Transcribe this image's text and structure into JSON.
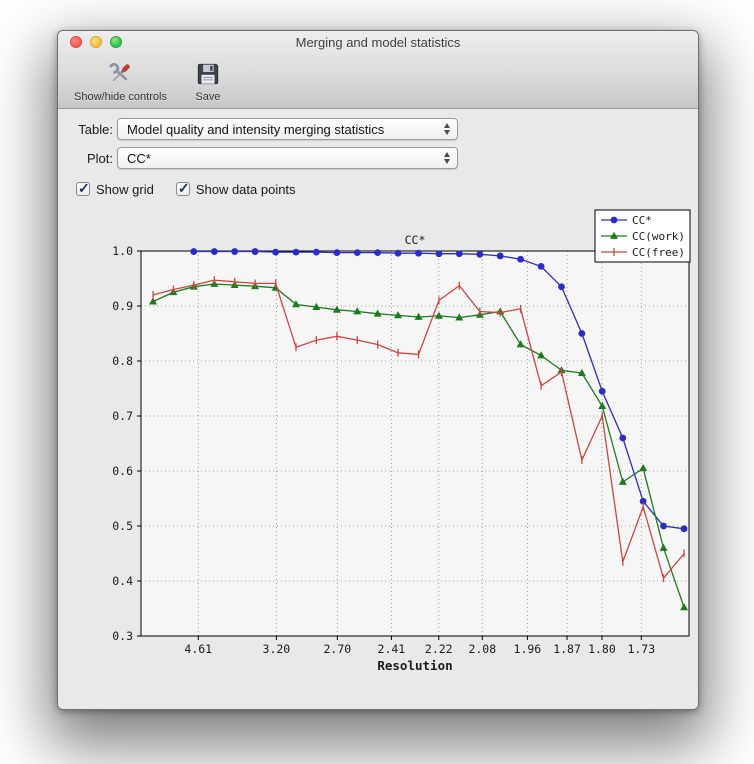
{
  "window": {
    "title": "Merging and model statistics"
  },
  "toolbar": {
    "buttons": [
      {
        "label": "Show/hide controls",
        "icon": "tools-icon"
      },
      {
        "label": "Save",
        "icon": "floppy-disk-icon"
      }
    ]
  },
  "controls": {
    "table_label": "Table:",
    "table_value": "Model quality and intensity merging statistics",
    "plot_label": "Plot:",
    "plot_value": "CC*",
    "checkboxes": [
      {
        "label": "Show grid",
        "checked": true
      },
      {
        "label": "Show data points",
        "checked": true
      }
    ]
  },
  "chart_data": {
    "type": "line",
    "title": "CC*",
    "xlabel": "Resolution",
    "grid": true,
    "legend_position": "top-right",
    "xlim": [
      0.01,
      0.365
    ],
    "ylim": [
      0.3,
      1.0
    ],
    "yticks": [
      {
        "label": "0.3",
        "value": 0.3
      },
      {
        "label": "0.4",
        "value": 0.4
      },
      {
        "label": "0.5",
        "value": 0.5
      },
      {
        "label": "0.6",
        "value": 0.6
      },
      {
        "label": "0.7",
        "value": 0.7
      },
      {
        "label": "0.8",
        "value": 0.8
      },
      {
        "label": "0.9",
        "value": 0.9
      },
      {
        "label": "1.0",
        "value": 1.0
      }
    ],
    "xticks": [
      {
        "label": "4.61",
        "value": 0.0471
      },
      {
        "label": "3.20",
        "value": 0.0977
      },
      {
        "label": "2.70",
        "value": 0.1372
      },
      {
        "label": "2.41",
        "value": 0.1722
      },
      {
        "label": "2.22",
        "value": 0.2029
      },
      {
        "label": "2.08",
        "value": 0.2311
      },
      {
        "label": "1.96",
        "value": 0.2603
      },
      {
        "label": "1.87",
        "value": 0.286
      },
      {
        "label": "1.80",
        "value": 0.3086
      },
      {
        "label": "1.73",
        "value": 0.3341
      }
    ],
    "x": [
      0.0178,
      0.031,
      0.0442,
      0.0575,
      0.0707,
      0.0839,
      0.0972,
      0.1104,
      0.1236,
      0.1369,
      0.1501,
      0.1633,
      0.1765,
      0.1898,
      0.203,
      0.2162,
      0.2295,
      0.2427,
      0.2559,
      0.2692,
      0.2824,
      0.2956,
      0.3088,
      0.3221,
      0.3353,
      0.3485,
      0.3618
    ],
    "series": [
      {
        "name": "CC*",
        "color": "#2b2bc8",
        "marker": "circle",
        "values": [
          null,
          null,
          0.999,
          0.999,
          0.999,
          0.999,
          0.998,
          0.998,
          0.998,
          0.997,
          0.997,
          0.997,
          0.996,
          0.996,
          0.995,
          0.995,
          0.994,
          0.991,
          0.985,
          0.972,
          0.935,
          0.85,
          0.745,
          0.66,
          0.545,
          0.5,
          0.495
        ]
      },
      {
        "name": "CC(work)",
        "color": "#1e7a1e",
        "marker": "triangle",
        "values": [
          0.908,
          0.925,
          0.935,
          0.94,
          0.938,
          0.936,
          0.933,
          0.903,
          0.898,
          0.893,
          0.89,
          0.886,
          0.883,
          0.88,
          0.882,
          0.879,
          0.884,
          0.89,
          0.83,
          0.81,
          0.783,
          0.778,
          0.718,
          0.58,
          0.605,
          0.46,
          0.352
        ]
      },
      {
        "name": "CC(free)",
        "color": "#cf4444",
        "marker": "vtick",
        "values": [
          0.92,
          0.93,
          0.938,
          0.947,
          0.944,
          0.941,
          0.941,
          0.825,
          0.838,
          0.845,
          0.838,
          0.83,
          0.815,
          0.812,
          0.91,
          0.937,
          0.89,
          0.888,
          0.895,
          0.755,
          0.78,
          0.62,
          0.7,
          0.435,
          0.535,
          0.405,
          0.45
        ]
      }
    ]
  }
}
